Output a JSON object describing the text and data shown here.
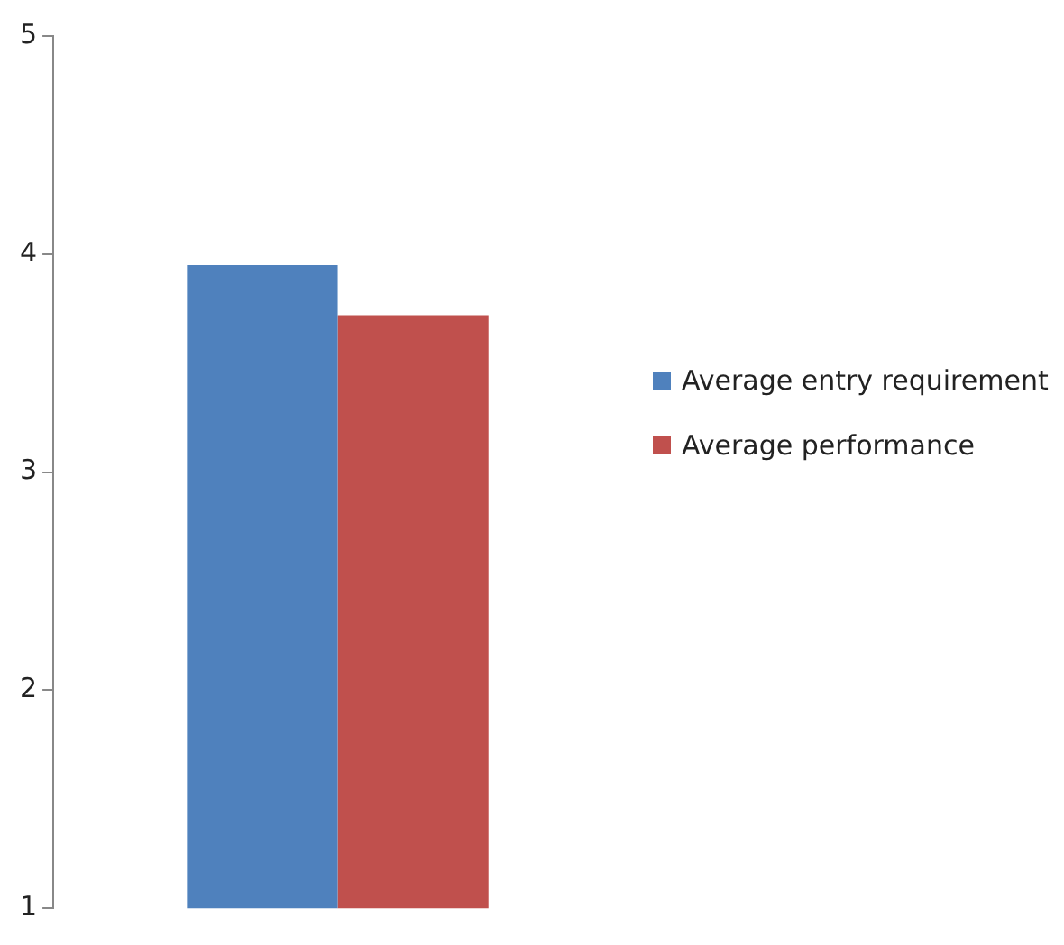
{
  "chart_data": {
    "type": "bar",
    "categories": [
      null
    ],
    "series": [
      {
        "name": "Average entry requirement",
        "color": "#4f81bd",
        "values": [
          3.95
        ]
      },
      {
        "name": "Average performance",
        "color": "#c0504d",
        "values": [
          3.72
        ]
      }
    ],
    "ylim": [
      1,
      5
    ],
    "yticks": [
      1,
      2,
      3,
      4,
      5
    ],
    "grid": false,
    "legend": "right"
  }
}
